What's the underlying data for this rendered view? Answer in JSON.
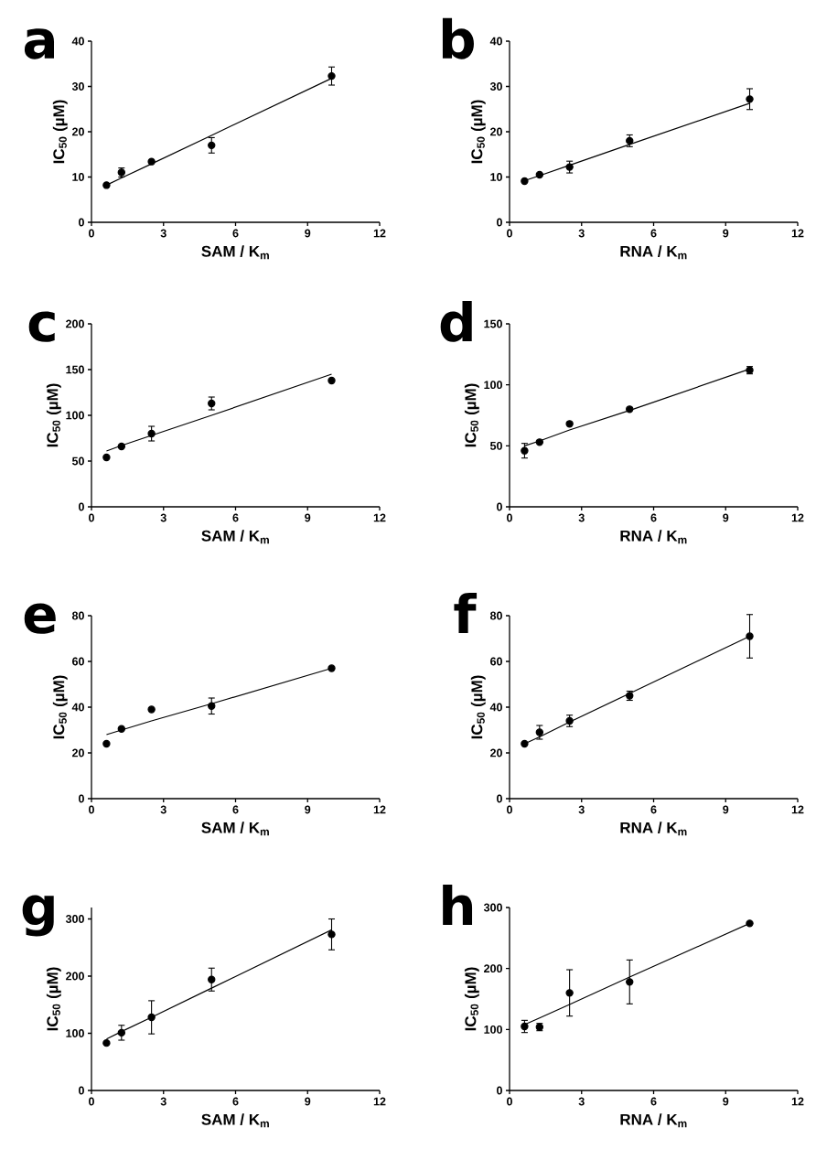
{
  "chart_data": [
    {
      "type": "scatter",
      "title": "a",
      "xlabel": "SAM / K$_{m}$",
      "ylabel": "IC$_{50}$ (µM)",
      "xlim": [
        0,
        12
      ],
      "xticks": [
        0,
        3,
        6,
        9,
        12
      ],
      "ylim": [
        0,
        40
      ],
      "yticks": [
        0,
        10,
        20,
        30,
        40
      ],
      "marker": "circle",
      "x": [
        0.625,
        1.25,
        2.5,
        5,
        10
      ],
      "series": [
        {
          "color": "#000000",
          "values": [
            8.2,
            11,
            13.4,
            17,
            32.3
          ],
          "errors": [
            null,
            1,
            null,
            1.7,
            2
          ]
        },
        {
          "type": "line",
          "marker": "none",
          "color": "#000000",
          "values": [
            8.2,
            9.8,
            12.9,
            19.2,
            31.8
          ]
        }
      ]
    },
    {
      "type": "scatter",
      "title": "b",
      "xlabel": "RNA / K$_{m}$",
      "ylabel": "IC$_{50}$ (µM)",
      "xlim": [
        0,
        12
      ],
      "xticks": [
        0,
        3,
        6,
        9,
        12
      ],
      "ylim": [
        0,
        40
      ],
      "yticks": [
        0,
        10,
        20,
        30,
        40
      ],
      "marker": "circle",
      "x": [
        0.625,
        1.25,
        2.5,
        5,
        10
      ],
      "series": [
        {
          "color": "#000000",
          "values": [
            9.1,
            10.5,
            12.2,
            18,
            27.2
          ],
          "errors": [
            null,
            null,
            1.3,
            1.3,
            2.3
          ]
        },
        {
          "type": "line",
          "marker": "none",
          "color": "#000000",
          "values": [
            9.2,
            10.3,
            12.6,
            17.2,
            26.3
          ]
        }
      ]
    },
    {
      "type": "scatter",
      "title": "c",
      "xlabel": "SAM / K$_{m}$",
      "ylabel": "IC$_{50}$ (µM)",
      "xlim": [
        0,
        12
      ],
      "xticks": [
        0,
        3,
        6,
        9,
        12
      ],
      "ylim": [
        0,
        200
      ],
      "yticks": [
        0,
        50,
        100,
        150,
        200
      ],
      "marker": "circle",
      "x": [
        0.625,
        1.25,
        2.5,
        5,
        10
      ],
      "series": [
        {
          "color": "#000000",
          "values": [
            54,
            66,
            80,
            113,
            138
          ],
          "errors": [
            null,
            null,
            8,
            7,
            null
          ]
        },
        {
          "type": "line",
          "marker": "none",
          "color": "#000000",
          "values": [
            61,
            67,
            78,
            100,
            145
          ]
        }
      ]
    },
    {
      "type": "scatter",
      "title": "d",
      "xlabel": "RNA / K$_{m}$",
      "ylabel": "IC$_{50}$ (µM)",
      "xlim": [
        0,
        12
      ],
      "xticks": [
        0,
        3,
        6,
        9,
        12
      ],
      "ylim": [
        0,
        150
      ],
      "yticks": [
        0,
        50,
        100,
        150
      ],
      "marker": "circle",
      "x": [
        0.625,
        1.25,
        2.5,
        5,
        10
      ],
      "series": [
        {
          "color": "#000000",
          "values": [
            46,
            53,
            68,
            80,
            112
          ],
          "errors": [
            6,
            null,
            null,
            null,
            3
          ]
        },
        {
          "type": "line",
          "marker": "none",
          "color": "#000000",
          "values": [
            50,
            54,
            63,
            79,
            113
          ]
        }
      ]
    },
    {
      "type": "scatter",
      "title": "e",
      "xlabel": "SAM / K$_{m}$",
      "ylabel": "IC$_{50}$ (µM)",
      "xlim": [
        0,
        12
      ],
      "xticks": [
        0,
        3,
        6,
        9,
        12
      ],
      "ylim": [
        0,
        80
      ],
      "yticks": [
        0,
        20,
        40,
        60,
        80
      ],
      "marker": "circle",
      "x": [
        0.625,
        1.25,
        2.5,
        5,
        10
      ],
      "series": [
        {
          "color": "#000000",
          "values": [
            24,
            30.5,
            39,
            40.5,
            57
          ],
          "errors": [
            null,
            null,
            null,
            3.5,
            null
          ]
        },
        {
          "type": "line",
          "marker": "none",
          "color": "#000000",
          "values": [
            28,
            30,
            34,
            41.5,
            57
          ]
        }
      ]
    },
    {
      "type": "scatter",
      "title": "f",
      "xlabel": "RNA / K$_{m}$",
      "ylabel": "IC$_{50}$ (µM)",
      "xlim": [
        0,
        12
      ],
      "xticks": [
        0,
        3,
        6,
        9,
        12
      ],
      "ylim": [
        0,
        80
      ],
      "yticks": [
        0,
        20,
        40,
        60,
        80
      ],
      "marker": "circle",
      "x": [
        0.625,
        1.25,
        2.5,
        5,
        10
      ],
      "series": [
        {
          "color": "#000000",
          "values": [
            24,
            29,
            34,
            45,
            71
          ],
          "errors": [
            null,
            3,
            2.5,
            2,
            9.5
          ]
        },
        {
          "type": "line",
          "marker": "none",
          "color": "#000000",
          "values": [
            24,
            27,
            33.5,
            46,
            71
          ]
        }
      ]
    },
    {
      "type": "scatter",
      "title": "g",
      "xlabel": "SAM / K$_{m}$",
      "ylabel": "IC$_{50}$ (µM)",
      "xlim": [
        0,
        12
      ],
      "xticks": [
        0,
        3,
        6,
        9,
        12
      ],
      "ylim": [
        0,
        320
      ],
      "yticks": [
        0,
        100,
        200,
        300
      ],
      "marker": "circle",
      "x": [
        0.625,
        1.25,
        2.5,
        5,
        10
      ],
      "series": [
        {
          "color": "#000000",
          "values": [
            83,
            101,
            128,
            194,
            273
          ],
          "errors": [
            null,
            13,
            29,
            20,
            27
          ]
        },
        {
          "type": "line",
          "marker": "none",
          "color": "#000000",
          "values": [
            90,
            103,
            128,
            179,
            281
          ]
        }
      ]
    },
    {
      "type": "scatter",
      "title": "h",
      "xlabel": "RNA / K$_{m}$",
      "ylabel": "IC$_{50}$ (µM)",
      "xlim": [
        0,
        12
      ],
      "xticks": [
        0,
        3,
        6,
        9,
        12
      ],
      "ylim": [
        0,
        300
      ],
      "yticks": [
        0,
        100,
        200,
        300
      ],
      "marker": "circle",
      "x": [
        0.625,
        1.25,
        2.5,
        5,
        10
      ],
      "series": [
        {
          "color": "#000000",
          "values": [
            105,
            104,
            160,
            178,
            274
          ],
          "errors": [
            10,
            6,
            38,
            36,
            null
          ]
        },
        {
          "type": "line",
          "marker": "none",
          "color": "#000000",
          "values": [
            108,
            119,
            141,
            186,
            274
          ]
        }
      ]
    }
  ]
}
